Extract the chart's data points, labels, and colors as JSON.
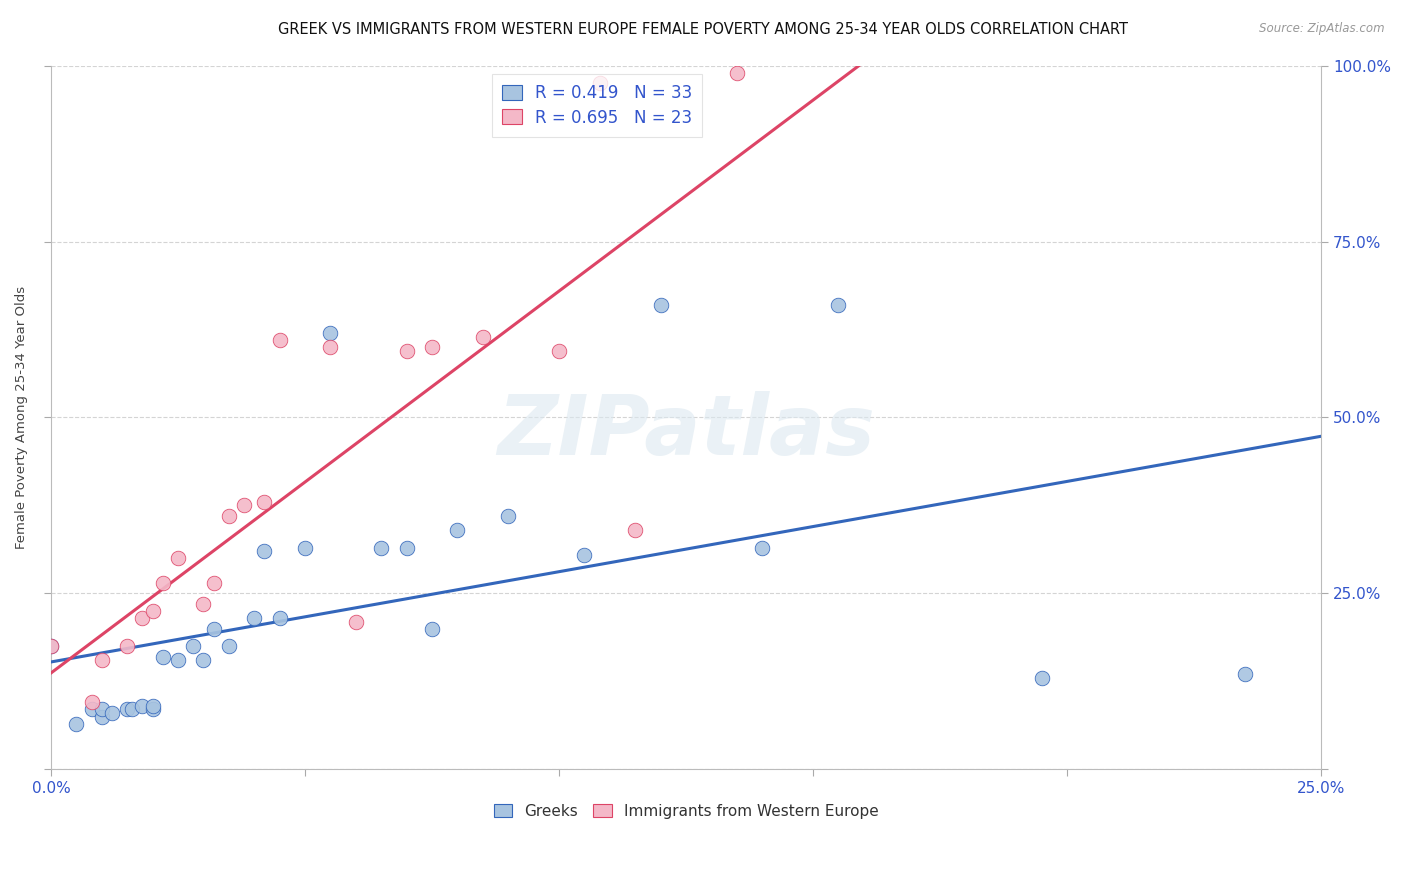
{
  "title": "GREEK VS IMMIGRANTS FROM WESTERN EUROPE FEMALE POVERTY AMONG 25-34 YEAR OLDS CORRELATION CHART",
  "source": "Source: ZipAtlas.com",
  "ylabel": "Female Poverty Among 25-34 Year Olds",
  "xlim": [
    0.0,
    0.25
  ],
  "ylim": [
    0.0,
    1.0
  ],
  "xticks": [
    0.0,
    0.05,
    0.1,
    0.15,
    0.2,
    0.25
  ],
  "yticks": [
    0.0,
    0.25,
    0.5,
    0.75,
    1.0
  ],
  "blue_R": 0.419,
  "blue_N": 33,
  "pink_R": 0.695,
  "pink_N": 23,
  "blue_color": "#a8c4e0",
  "pink_color": "#f4b8c8",
  "blue_line_color": "#3366bb",
  "pink_line_color": "#dd4466",
  "legend_color": "#3355cc",
  "blue_scatter_x": [
    0.0,
    0.005,
    0.008,
    0.01,
    0.01,
    0.012,
    0.015,
    0.016,
    0.018,
    0.02,
    0.02,
    0.022,
    0.025,
    0.028,
    0.03,
    0.032,
    0.035,
    0.04,
    0.042,
    0.045,
    0.05,
    0.055,
    0.065,
    0.07,
    0.075,
    0.08,
    0.09,
    0.105,
    0.12,
    0.14,
    0.155,
    0.195,
    0.235
  ],
  "blue_scatter_y": [
    0.175,
    0.065,
    0.085,
    0.075,
    0.085,
    0.08,
    0.085,
    0.085,
    0.09,
    0.085,
    0.09,
    0.16,
    0.155,
    0.175,
    0.155,
    0.2,
    0.175,
    0.215,
    0.31,
    0.215,
    0.315,
    0.62,
    0.315,
    0.315,
    0.2,
    0.34,
    0.36,
    0.305,
    0.66,
    0.315,
    0.66,
    0.13,
    0.135
  ],
  "pink_scatter_x": [
    0.0,
    0.008,
    0.01,
    0.015,
    0.018,
    0.02,
    0.022,
    0.025,
    0.03,
    0.032,
    0.035,
    0.038,
    0.042,
    0.045,
    0.055,
    0.06,
    0.07,
    0.075,
    0.085,
    0.1,
    0.108,
    0.115,
    0.135
  ],
  "pink_scatter_y": [
    0.175,
    0.095,
    0.155,
    0.175,
    0.215,
    0.225,
    0.265,
    0.3,
    0.235,
    0.265,
    0.36,
    0.375,
    0.38,
    0.61,
    0.6,
    0.21,
    0.595,
    0.6,
    0.615,
    0.595,
    0.975,
    0.34,
    0.99
  ],
  "watermark_text": "ZIPatlas",
  "background_color": "#ffffff",
  "grid_color": "#d0d0d0",
  "title_fontsize": 10.5,
  "axis_label_fontsize": 9.5,
  "tick_color": "#3355cc"
}
